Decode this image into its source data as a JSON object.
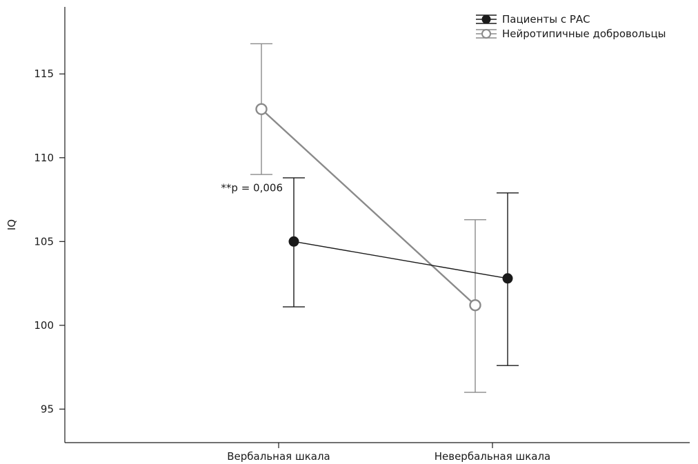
{
  "chart_data": {
    "type": "line",
    "title": "",
    "xlabel": "",
    "ylabel": "IQ",
    "categories": [
      "Вербальная шкала",
      "Невербальная шкала"
    ],
    "ylim": [
      93,
      119
    ],
    "yticks": [
      95,
      100,
      105,
      110,
      115
    ],
    "grid": false,
    "legend_position": "top-right",
    "series": [
      {
        "name": "Пациенты с РАС",
        "marker": "filled-circle",
        "color": "#1a1a1a",
        "values": [
          105.0,
          102.8
        ],
        "ci_low": [
          101.1,
          97.6
        ],
        "ci_high": [
          108.8,
          107.9
        ]
      },
      {
        "name": "Нейротипичные добровольцы",
        "marker": "open-circle",
        "color": "#8a8a8a",
        "values": [
          112.9,
          101.2
        ],
        "ci_low": [
          109.0,
          96.0
        ],
        "ci_high": [
          116.8,
          106.3
        ]
      }
    ],
    "annotations": [
      {
        "text": "**p = 0,006",
        "category": "Вербальная шкала",
        "y": 108.2
      }
    ]
  }
}
